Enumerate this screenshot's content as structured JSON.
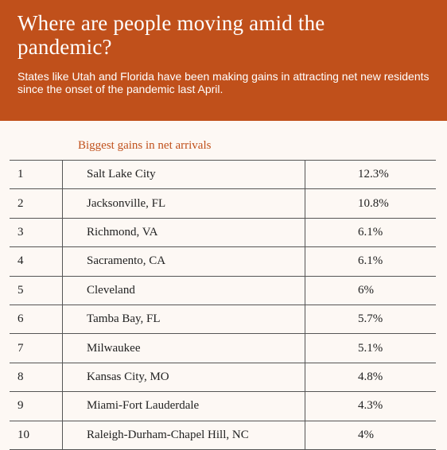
{
  "header": {
    "title": "Where are people moving amid the pandemic?",
    "subtitle": "States like Utah and Florida have been making gains in attracting net new residents since the onset of the pandemic last April."
  },
  "table": {
    "caption": "Biggest gains in net arrivals",
    "rows": [
      [
        "1",
        "Salt Lake City",
        "12.3%"
      ],
      [
        "2",
        "Jacksonville, FL",
        "10.8%"
      ],
      [
        "3",
        "Richmond, VA",
        "6.1%"
      ],
      [
        "4",
        "Sacramento, CA",
        "6.1%"
      ],
      [
        "5",
        "Cleveland",
        "6%"
      ],
      [
        "6",
        "Tamba Bay, FL",
        "5.7%"
      ],
      [
        "7",
        "Milwaukee",
        "5.1%"
      ],
      [
        "8",
        "Kansas City, MO",
        "4.8%"
      ],
      [
        "9",
        "Miami-Fort Lauderdale",
        "4.3%"
      ],
      [
        "10",
        "Raleigh-Durham-Chapel Hill, NC",
        "4%"
      ]
    ]
  }
}
